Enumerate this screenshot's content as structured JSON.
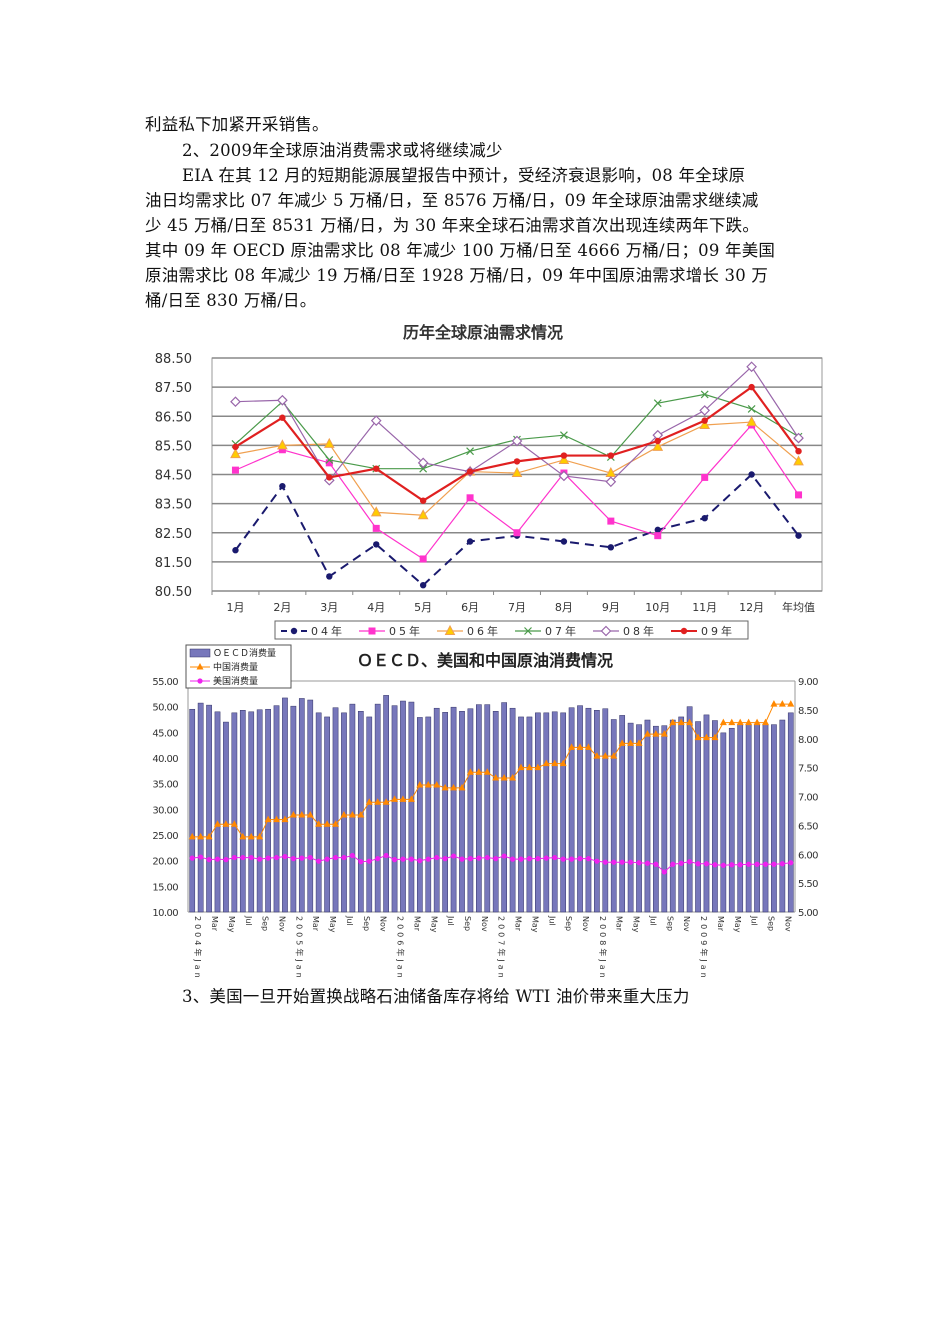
{
  "text": {
    "line1": "利益私下加紧开采销售。",
    "heading2": "2、2009年全球原油消费需求或将继续减少",
    "para": [
      "EIA 在其 12 月的短期能源展望报告中预计，受经济衰退影响，08 年全球原",
      "油日均需求比 07 年减少 5 万桶/日，至 8576  万桶/日，09 年全球原油需求继续减",
      "少 45 万桶/日至 8531  万桶/日，为 30 年来全球石油需求首次出现连续两年下跌。",
      "其中 09 年 OECD  原油需求比  08 年减少  100 万桶/日至 4666  万桶/日；09 年美国",
      "原油需求比  08 年减少  19 万桶/日至  1928  万桶/日，09 年中国原油需求增长   30 万",
      "桶/日至 830 万桶/日。"
    ],
    "heading3": "3、美国一旦开始置换战略石油储备库存将给    WTI 油价带来重大压力"
  },
  "chart_data": [
    {
      "type": "line",
      "title": "历年全球原油需求情况",
      "categories": [
        "1月",
        "2月",
        "3月",
        "4月",
        "5月",
        "6月",
        "7月",
        "8月",
        "9月",
        "10月",
        "11月",
        "12月",
        "年均值"
      ],
      "ylim": [
        80.5,
        88.5
      ],
      "yticks": [
        "88.50",
        "87.50",
        "86.50",
        "85.50",
        "84.50",
        "83.50",
        "82.50",
        "81.50",
        "80.50"
      ],
      "grid": true,
      "legend": "bottom",
      "series": [
        {
          "name": "04年",
          "color": "#1a1a6e",
          "marker": "circle",
          "dash": true,
          "values": [
            81.9,
            84.1,
            81.0,
            82.1,
            80.7,
            82.2,
            82.4,
            82.2,
            82.0,
            82.6,
            83.0,
            84.5,
            82.4
          ]
        },
        {
          "name": "05年",
          "color": "#ff33cc",
          "marker": "square",
          "values": [
            84.65,
            85.35,
            84.9,
            82.65,
            81.6,
            83.7,
            82.5,
            84.55,
            82.9,
            82.4,
            84.4,
            86.2,
            83.8
          ]
        },
        {
          "name": "06年",
          "color": "#f0a050",
          "marker": "triangle",
          "values": [
            85.2,
            85.5,
            85.55,
            83.2,
            83.1,
            84.6,
            84.55,
            85.0,
            84.55,
            85.45,
            86.2,
            86.3,
            84.95
          ]
        },
        {
          "name": "07年",
          "color": "#4a9a4a",
          "marker": "x",
          "values": [
            85.55,
            87.0,
            85.0,
            84.7,
            84.7,
            85.3,
            85.7,
            85.85,
            85.1,
            86.95,
            87.25,
            86.75,
            85.8
          ]
        },
        {
          "name": "08年",
          "color": "#9966aa",
          "marker": "diamond",
          "values": [
            87.0,
            87.05,
            84.3,
            86.35,
            84.9,
            84.6,
            85.65,
            84.45,
            84.25,
            85.85,
            86.7,
            88.2,
            85.75
          ]
        },
        {
          "name": "09年",
          "color": "#e02020",
          "marker": "circle",
          "bold": true,
          "values": [
            85.45,
            86.45,
            84.4,
            84.7,
            83.6,
            84.6,
            84.95,
            85.15,
            85.15,
            85.65,
            86.35,
            87.5,
            85.3
          ]
        }
      ]
    },
    {
      "type": "bar+line",
      "title": "ＯＥＣＤ、美国和中国原油消费情况",
      "ylim_left": [
        10,
        55
      ],
      "ylim_right": [
        5,
        9
      ],
      "yticks_left": [
        "55.00",
        "50.00",
        "45.00",
        "40.00",
        "35.00",
        "30.00",
        "25.00",
        "20.00",
        "15.00",
        "10.00"
      ],
      "yticks_right": [
        "9.00",
        "8.50",
        "8.00",
        "7.50",
        "7.00",
        "6.50",
        "6.00",
        "5.50",
        "5.00"
      ],
      "xtick_labels": [
        "2004年Jan",
        "Mar",
        "May",
        "Jul",
        "Sep",
        "Nov",
        "2005年Jan",
        "Mar",
        "May",
        "Jul",
        "Sep",
        "Nov",
        "2006年Jan",
        "Mar",
        "May",
        "Jul",
        "Sep",
        "Nov",
        "2007年Jan",
        "Mar",
        "May",
        "Jul",
        "Sep",
        "Nov",
        "2008年Jan",
        "Mar",
        "May",
        "Jul",
        "Sep",
        "Nov",
        "2009年Jan",
        "Mar",
        "May",
        "Jul",
        "Sep",
        "Nov"
      ],
      "legend": "top-left",
      "series": [
        {
          "name": "ＯＥＣＤ消费量",
          "type": "bar",
          "axis": "left",
          "color": "#7777bb",
          "values": [
            49.5,
            50.7,
            50.3,
            49,
            47,
            48.8,
            49.3,
            49,
            49.4,
            49.5,
            50.2,
            51.7,
            50.1,
            51.6,
            51.3,
            48.8,
            48,
            49.8,
            48.8,
            50.5,
            49.1,
            48,
            50.5,
            52.2,
            50.2,
            51.1,
            50.9,
            47.9,
            48,
            49.7,
            48.9,
            49.9,
            49.1,
            49.6,
            50.4,
            50.4,
            49.1,
            50.8,
            49.7,
            48,
            48,
            48.8,
            48.8,
            49,
            48.8,
            49.8,
            50.2,
            49.7,
            49.3,
            49.6,
            47.5,
            48.3,
            46.8,
            46.5,
            47.4,
            46.2,
            46.3,
            47.4,
            48,
            50,
            47.1,
            48.4,
            47.3,
            44.9,
            45.8,
            46.5,
            46.6,
            46.6,
            46.6,
            46.5,
            47.4,
            48.8
          ]
        },
        {
          "name": "中国消费量",
          "type": "line",
          "axis": "right",
          "color": "#ff8800",
          "values": [
            6.3,
            6.3,
            6.3,
            6.52,
            6.52,
            6.52,
            6.3,
            6.3,
            6.3,
            6.6,
            6.6,
            6.6,
            6.68,
            6.68,
            6.68,
            6.52,
            6.52,
            6.52,
            6.68,
            6.68,
            6.68,
            6.9,
            6.9,
            6.9,
            6.95,
            6.95,
            6.95,
            7.2,
            7.2,
            7.2,
            7.15,
            7.15,
            7.15,
            7.42,
            7.42,
            7.42,
            7.32,
            7.32,
            7.32,
            7.5,
            7.5,
            7.5,
            7.57,
            7.57,
            7.57,
            7.85,
            7.85,
            7.85,
            7.7,
            7.7,
            7.7,
            7.92,
            7.92,
            7.92,
            8.08,
            8.08,
            8.08,
            8.28,
            8.28,
            8.28,
            8.02,
            8.02,
            8.02,
            8.28,
            8.28,
            8.28,
            8.28,
            8.28,
            8.28,
            8.6,
            8.6,
            8.6
          ]
        },
        {
          "name": "美国消费量",
          "type": "line",
          "axis": "left",
          "color": "#ee22ee",
          "values": [
            20.5,
            20.7,
            20.2,
            20.3,
            20.2,
            20.6,
            20.6,
            20.6,
            20.3,
            20.5,
            20.6,
            20.8,
            20.4,
            20.5,
            20.6,
            19.9,
            20.3,
            20.6,
            20.6,
            21.0,
            19.8,
            19.9,
            20.4,
            21.0,
            20.2,
            20.3,
            20.3,
            20.0,
            20.3,
            20.6,
            20.4,
            20.9,
            20.3,
            20.4,
            20.5,
            20.6,
            20.4,
            20.9,
            20.3,
            20.3,
            20.4,
            20.4,
            20.5,
            20.6,
            20.3,
            20.3,
            20.4,
            20.4,
            19.9,
            19.7,
            19.7,
            19.7,
            19.7,
            19.6,
            19.5,
            19.3,
            17.8,
            19.3,
            19.5,
            19.8,
            19.4,
            19.4,
            19.2,
            19.1,
            19.2,
            19.2,
            19.3,
            19.3,
            19.3,
            19.3,
            19.4,
            19.6
          ]
        }
      ]
    }
  ]
}
